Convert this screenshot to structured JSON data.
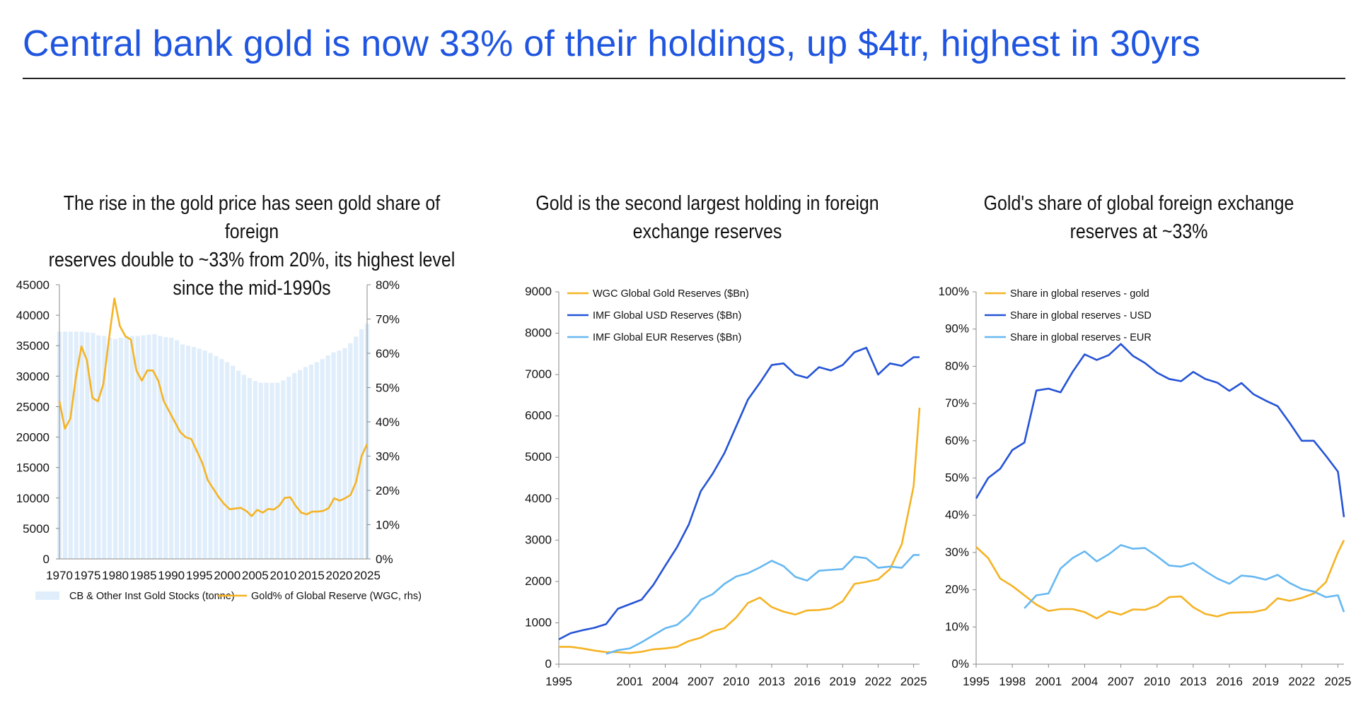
{
  "headline": "Central bank gold is now 33% of their holdings, up $4tr, highest in 30yrs",
  "colors": {
    "headline": "#1f55e0",
    "gold": "#f5b324",
    "usd": "#2453d6",
    "eur": "#66b8f2",
    "bars": "#e0eefb"
  },
  "chart_data": [
    {
      "type": "bar+line",
      "title": "The rise in the gold price has seen gold share of foreign reserves double to ~33% from 20%, its highest level since the mid-1990s",
      "title_lines": [
        "The rise in the gold price has seen gold share of foreign",
        "reserves double to ~33% from 20%, its highest level",
        "since the mid-1990s"
      ],
      "x_start": 1970,
      "x_end": 2025,
      "x_ticks": [
        "1970",
        "1975",
        "1980",
        "1985",
        "1990",
        "1995",
        "2000",
        "2005",
        "2010",
        "2015",
        "2020",
        "2025"
      ],
      "y_left_ticks": [
        "0",
        "5000",
        "10000",
        "15000",
        "20000",
        "25000",
        "30000",
        "35000",
        "40000",
        "45000"
      ],
      "y_right_ticks": [
        "0%",
        "10%",
        "20%",
        "30%",
        "40%",
        "50%",
        "60%",
        "70%",
        "80%"
      ],
      "ylim_left": [
        0,
        45000
      ],
      "ylim_right": [
        0,
        80
      ],
      "series": [
        {
          "name": "CB & Other Inst Gold Stocks (tonne)",
          "axis": "left",
          "kind": "bar",
          "color": "#e0eefb",
          "values": [
            37300,
            37300,
            37300,
            37300,
            37300,
            37200,
            37100,
            36700,
            36600,
            36300,
            36100,
            36300,
            36600,
            36600,
            36600,
            36700,
            36800,
            36900,
            36600,
            36400,
            36300,
            35900,
            35200,
            35000,
            34800,
            34500,
            34200,
            33800,
            33300,
            32800,
            32300,
            31700,
            30900,
            30200,
            29700,
            29200,
            28900,
            28900,
            28900,
            28900,
            29300,
            29900,
            30500,
            31000,
            31500,
            31900,
            32300,
            32800,
            33400,
            33900,
            34200,
            34600,
            35400,
            36500,
            37700,
            38600
          ]
        },
        {
          "name": "Gold% of Global Reserve (WGC, rhs)",
          "axis": "right",
          "kind": "line",
          "color": "#f5b324",
          "values": [
            46,
            38,
            41,
            53,
            62,
            58,
            47,
            46,
            51,
            64,
            76,
            68,
            65,
            64,
            55,
            52,
            55,
            55,
            52,
            46,
            43,
            40,
            37,
            35.5,
            35,
            31.5,
            28,
            23,
            20.5,
            18,
            16,
            14.5,
            14.7,
            14.9,
            14,
            12.5,
            14.3,
            13.5,
            14.6,
            14.4,
            15.5,
            17.8,
            18,
            15.5,
            13.5,
            13,
            13.8,
            13.8,
            14,
            14.8,
            17.7,
            17,
            17.7,
            18.7,
            22.5,
            30,
            33.5
          ]
        }
      ]
    },
    {
      "type": "line",
      "title": "Gold is the second largest holding in foreign exchange reserves",
      "title_lines": [
        "Gold is the second largest holding in foreign",
        "exchange reserves"
      ],
      "x_start": 1995,
      "x_end": 2025.5,
      "x_ticks": [
        "1995",
        "2001",
        "2004",
        "2007",
        "2010",
        "2013",
        "2016",
        "2019",
        "2022",
        "2025"
      ],
      "y_ticks": [
        "0",
        "1000",
        "2000",
        "3000",
        "4000",
        "5000",
        "6000",
        "7000",
        "8000",
        "9000"
      ],
      "ylim": [
        0,
        9000
      ],
      "series": [
        {
          "name": "WGC Global Gold Reserves ($Bn)",
          "color": "#f5b324",
          "x": [
            1995,
            1996,
            1997,
            1998,
            1999,
            2000,
            2001,
            2002,
            2003,
            2004,
            2005,
            2006,
            2007,
            2008,
            2009,
            2010,
            2011,
            2012,
            2013,
            2014,
            2015,
            2016,
            2017,
            2018,
            2019,
            2020,
            2021,
            2022,
            2023,
            2024,
            2025,
            2025.5
          ],
          "values": [
            420,
            420,
            380,
            330,
            290,
            290,
            270,
            300,
            360,
            380,
            420,
            560,
            640,
            800,
            870,
            1130,
            1480,
            1610,
            1380,
            1270,
            1200,
            1300,
            1310,
            1350,
            1520,
            1940,
            1990,
            2050,
            2300,
            2900,
            4300,
            6200
          ]
        },
        {
          "name": "IMF Global USD Reserves ($Bn)",
          "color": "#2453d6",
          "x": [
            1995,
            1996,
            1997,
            1998,
            1999,
            2000,
            2001,
            2002,
            2003,
            2004,
            2005,
            2006,
            2007,
            2008,
            2009,
            2010,
            2011,
            2012,
            2013,
            2014,
            2015,
            2016,
            2017,
            2018,
            2019,
            2020,
            2021,
            2022,
            2023,
            2024,
            2025,
            2025.5
          ],
          "values": [
            600,
            750,
            820,
            880,
            970,
            1340,
            1450,
            1560,
            1920,
            2380,
            2830,
            3380,
            4180,
            4600,
            5100,
            5750,
            6400,
            6800,
            7230,
            7270,
            7000,
            6920,
            7180,
            7100,
            7230,
            7540,
            7650,
            7000,
            7270,
            7210,
            7420,
            7420
          ]
        },
        {
          "name": "IMF Global EUR Reserves ($Bn)",
          "color": "#66b8f2",
          "x": [
            1999,
            2000,
            2001,
            2002,
            2003,
            2004,
            2005,
            2006,
            2007,
            2008,
            2009,
            2010,
            2011,
            2012,
            2013,
            2014,
            2015,
            2016,
            2017,
            2018,
            2019,
            2020,
            2021,
            2022,
            2023,
            2024,
            2025,
            2025.5
          ],
          "values": [
            250,
            340,
            380,
            530,
            700,
            870,
            950,
            1190,
            1560,
            1690,
            1940,
            2120,
            2200,
            2340,
            2500,
            2370,
            2110,
            2020,
            2260,
            2280,
            2300,
            2600,
            2560,
            2330,
            2360,
            2330,
            2640,
            2640
          ]
        }
      ]
    },
    {
      "type": "line",
      "title": "Gold's share of global foreign exchange reserves at ~33%",
      "title_lines": [
        "Gold's share of global foreign exchange",
        "reserves at ~33%"
      ],
      "x_start": 1995,
      "x_end": 2025.5,
      "x_ticks": [
        "1995",
        "1998",
        "2001",
        "2004",
        "2007",
        "2010",
        "2013",
        "2016",
        "2019",
        "2022",
        "2025"
      ],
      "y_ticks": [
        "0%",
        "10%",
        "20%",
        "30%",
        "40%",
        "50%",
        "60%",
        "70%",
        "80%",
        "90%",
        "100%"
      ],
      "ylim": [
        0,
        100
      ],
      "series": [
        {
          "name": "Share in global reserves - gold",
          "color": "#f5b324",
          "x": [
            1995,
            1996,
            1997,
            1998,
            1999,
            2000,
            2001,
            2002,
            2003,
            2004,
            2005,
            2006,
            2007,
            2008,
            2009,
            2010,
            2011,
            2012,
            2013,
            2014,
            2015,
            2016,
            2017,
            2018,
            2019,
            2020,
            2021,
            2022,
            2023,
            2024,
            2025,
            2025.5
          ],
          "values": [
            31.5,
            28.5,
            23,
            21,
            18.5,
            16,
            14.3,
            14.8,
            14.8,
            14,
            12.3,
            14.2,
            13.3,
            14.7,
            14.6,
            15.7,
            18,
            18.2,
            15.3,
            13.5,
            12.8,
            13.8,
            13.9,
            14,
            14.7,
            17.7,
            17,
            17.8,
            19,
            22,
            30,
            33.3
          ]
        },
        {
          "name": "Share in global reserves - USD",
          "color": "#2453d6",
          "x": [
            1995,
            1996,
            1997,
            1998,
            1999,
            2000,
            2001,
            2002,
            2003,
            2004,
            2005,
            2006,
            2007,
            2008,
            2009,
            2010,
            2011,
            2012,
            2013,
            2014,
            2015,
            2016,
            2017,
            2018,
            2019,
            2020,
            2021,
            2022,
            2023,
            2024,
            2025,
            2025.5
          ],
          "values": [
            44.5,
            50,
            52.5,
            57.5,
            59.5,
            73.5,
            74,
            73,
            78.5,
            83.2,
            81.7,
            83,
            86,
            82.8,
            80.9,
            78.3,
            76.6,
            76,
            78.5,
            76.6,
            75.6,
            73.4,
            75.5,
            72.5,
            70.8,
            69.3,
            64.8,
            60,
            60,
            56,
            51.7,
            39.5
          ]
        },
        {
          "name": "Share in global reserves - EUR",
          "color": "#66b8f2",
          "x": [
            1999,
            2000,
            2001,
            2002,
            2003,
            2004,
            2005,
            2006,
            2007,
            2008,
            2009,
            2010,
            2011,
            2012,
            2013,
            2014,
            2015,
            2016,
            2017,
            2018,
            2019,
            2020,
            2021,
            2022,
            2023,
            2024,
            2025,
            2025.5
          ],
          "values": [
            15,
            18.5,
            19,
            25.7,
            28.5,
            30.3,
            27.6,
            29.5,
            32,
            31,
            31.2,
            29,
            26.5,
            26.2,
            27.2,
            25,
            23,
            21.6,
            23.8,
            23.5,
            22.7,
            24,
            21.8,
            20.2,
            19.5,
            18,
            18.5,
            14
          ]
        }
      ]
    }
  ]
}
